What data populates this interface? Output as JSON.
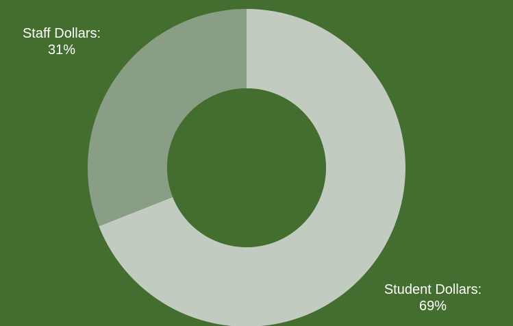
{
  "chart_data": {
    "type": "pie",
    "donut": true,
    "start_angle_deg": 0,
    "direction": "clockwise",
    "background_color": "#436e2f",
    "hole_color": "#436e2f",
    "slices": [
      {
        "name": "Student Dollars:",
        "value": 69,
        "value_label": "69%",
        "color": "#c2cbbf"
      },
      {
        "name": "Staff Dollars:",
        "value": 31,
        "value_label": "31%",
        "color": "#8a9d85"
      }
    ]
  }
}
